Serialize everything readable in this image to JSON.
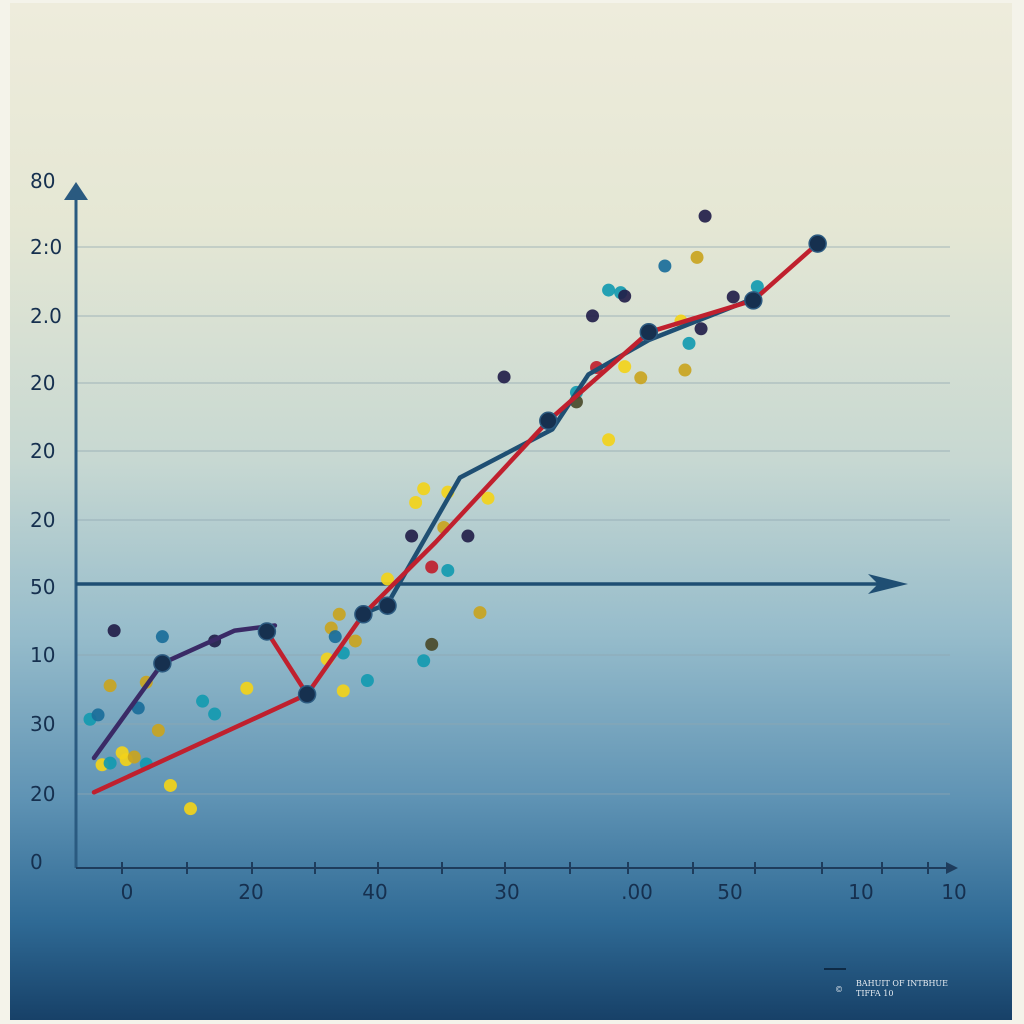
{
  "chart_data": {
    "type": "line",
    "title": "",
    "xlabel": "",
    "ylabel": "",
    "grid": true,
    "x_tick_labels": [
      "0",
      "20",
      "40",
      "30",
      ".00",
      "50",
      "10",
      "10"
    ],
    "y_tick_labels": [
      "80",
      "2:0",
      "2.0",
      "20",
      "20",
      "20",
      "50",
      "10",
      "30",
      "20",
      "0"
    ],
    "xlim": [
      0,
      10
    ],
    "ylim": [
      0,
      80
    ],
    "series": [
      {
        "color": "#3a2a66",
        "style": "line",
        "x": [
          0.1,
          0.95,
          1.85,
          2.35
        ],
        "y": [
          12.8,
          23.8,
          27.6,
          28.2
        ]
      },
      {
        "color": "#1f4f73",
        "style": "line",
        "x": [
          3.45,
          3.75,
          4.65,
          5.8,
          6.25,
          7.0,
          8.3
        ],
        "y": [
          29.6,
          30.7,
          45.4,
          51.0,
          57.4,
          61.4,
          66.2
        ]
      },
      {
        "color": "#c0202e",
        "style": "line",
        "x": [
          0.1,
          2.75,
          3.45,
          4.35,
          5.75,
          7.0,
          8.3,
          9.1
        ],
        "y": [
          8.8,
          20.2,
          29.5,
          37.9,
          52.0,
          62.3,
          66.0,
          72.6
        ]
      },
      {
        "color": "#c0202e",
        "style": "line",
        "x": [
          2.25,
          2.75
        ],
        "y": [
          27.5,
          20.2
        ]
      }
    ],
    "markers": {
      "color": "#16304f",
      "x": [
        0.95,
        2.25,
        2.75,
        3.45,
        3.75,
        5.75,
        7.0,
        8.3,
        9.1
      ],
      "y": [
        23.8,
        27.5,
        20.2,
        29.5,
        30.5,
        52.0,
        62.3,
        66.0,
        72.6
      ]
    },
    "scatter": {
      "yellow": {
        "color": "#f2d21a",
        "x": [
          0.2,
          0.45,
          0.5,
          1.05,
          1.3,
          2.0,
          3.0,
          3.2,
          3.75,
          4.1,
          4.2,
          4.5,
          5.0,
          6.5,
          6.7,
          7.4
        ],
        "y": [
          12.0,
          13.4,
          12.6,
          9.6,
          6.9,
          20.9,
          24.3,
          20.6,
          33.6,
          42.5,
          44.1,
          43.7,
          43.0,
          49.8,
          58.3,
          63.6
        ]
      },
      "gold": {
        "color": "#c9a420",
        "x": [
          0.3,
          0.6,
          0.75,
          0.9,
          3.05,
          3.15,
          3.35,
          4.45,
          4.9,
          6.9,
          7.45,
          7.6
        ],
        "y": [
          21.2,
          12.9,
          21.6,
          16.0,
          27.9,
          29.5,
          26.4,
          39.6,
          29.7,
          57.0,
          57.9,
          71.0
        ]
      },
      "teal": {
        "color": "#149ab0",
        "x": [
          0.05,
          0.3,
          0.75,
          1.45,
          1.6,
          3.2,
          3.5,
          4.2,
          4.5,
          6.1,
          6.5,
          6.65,
          7.5,
          8.35
        ],
        "y": [
          17.3,
          12.2,
          12.1,
          19.4,
          17.9,
          25.0,
          21.8,
          24.1,
          34.6,
          55.3,
          67.2,
          66.9,
          61.0,
          67.6
        ]
      },
      "blue": {
        "color": "#1a6e9a",
        "x": [
          0.15,
          0.65,
          0.95,
          3.1,
          7.2
        ],
        "y": [
          17.8,
          18.6,
          26.9,
          26.9,
          70.0
        ]
      },
      "navy": {
        "color": "#231f4a",
        "x": [
          0.35,
          1.6,
          4.05,
          4.75,
          5.2,
          6.3,
          6.7,
          7.65,
          7.7,
          8.05
        ],
        "y": [
          27.6,
          26.4,
          38.6,
          38.6,
          57.1,
          64.2,
          66.5,
          62.7,
          75.8,
          66.4
        ]
      },
      "red": {
        "color": "#c0202e",
        "x": [
          4.3,
          6.35
        ],
        "y": [
          35.0,
          58.2
        ]
      },
      "olive": {
        "color": "#4a4a2a",
        "x": [
          4.3,
          6.1
        ],
        "y": [
          26.0,
          54.2
        ]
      }
    }
  },
  "credit": {
    "line1": "BAHUIT OF INTBHUE",
    "line2": "TIFFA   10"
  }
}
